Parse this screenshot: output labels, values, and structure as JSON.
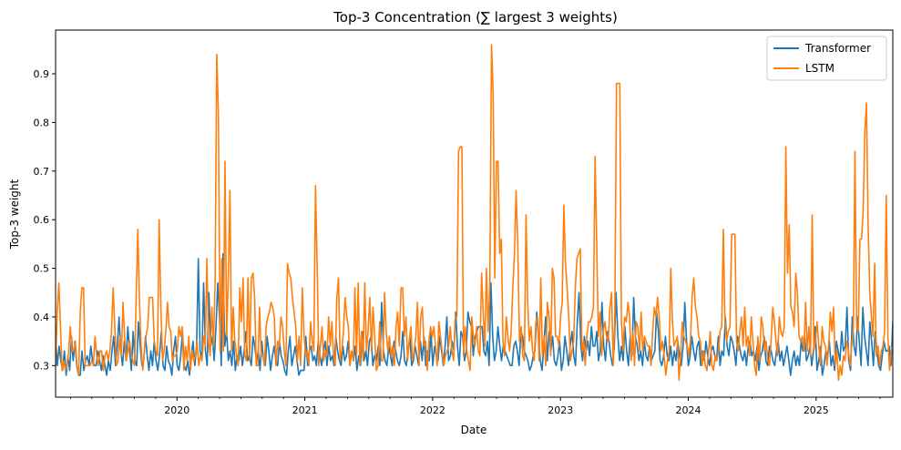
{
  "chart_data": {
    "type": "line",
    "title": "Top-3 Concentration (∑ largest 3 weights)",
    "xlabel": "Date",
    "ylabel": "Top-3 weight",
    "x_start": 2019.05,
    "x_end": 2025.6,
    "xlim": [
      2019.05,
      2025.6
    ],
    "ylim": [
      0.235,
      0.99
    ],
    "x_ticks": [
      2020,
      2021,
      2022,
      2023,
      2024,
      2025
    ],
    "x_tick_labels": [
      "2020",
      "2021",
      "2022",
      "2023",
      "2024",
      "2025"
    ],
    "y_ticks": [
      0.3,
      0.4,
      0.5,
      0.6,
      0.7,
      0.8,
      0.9
    ],
    "y_tick_labels": [
      "0.3",
      "0.4",
      "0.5",
      "0.6",
      "0.7",
      "0.8",
      "0.9"
    ],
    "legend_position": "top-right",
    "series": [
      {
        "name": "Transformer",
        "color": "#1f77b4",
        "values": [
          0.36,
          0.3,
          0.34,
          0.31,
          0.29,
          0.33,
          0.28,
          0.32,
          0.29,
          0.36,
          0.31,
          0.35,
          0.3,
          0.28,
          0.28,
          0.33,
          0.29,
          0.31,
          0.32,
          0.3,
          0.34,
          0.31,
          0.3,
          0.3,
          0.33,
          0.31,
          0.29,
          0.32,
          0.3,
          0.28,
          0.31,
          0.29,
          0.33,
          0.36,
          0.3,
          0.34,
          0.4,
          0.33,
          0.3,
          0.35,
          0.31,
          0.38,
          0.33,
          0.29,
          0.37,
          0.31,
          0.3,
          0.39,
          0.34,
          0.3,
          0.31,
          0.36,
          0.32,
          0.29,
          0.33,
          0.3,
          0.35,
          0.31,
          0.29,
          0.32,
          0.37,
          0.3,
          0.29,
          0.34,
          0.31,
          0.3,
          0.28,
          0.33,
          0.36,
          0.3,
          0.29,
          0.32,
          0.37,
          0.3,
          0.29,
          0.31,
          0.28,
          0.32,
          0.35,
          0.3,
          0.34,
          0.52,
          0.33,
          0.31,
          0.47,
          0.33,
          0.3,
          0.45,
          0.34,
          0.36,
          0.31,
          0.38,
          0.47,
          0.4,
          0.3,
          0.53,
          0.34,
          0.37,
          0.31,
          0.33,
          0.3,
          0.35,
          0.29,
          0.32,
          0.31,
          0.34,
          0.3,
          0.33,
          0.37,
          0.31,
          0.32,
          0.3,
          0.36,
          0.34,
          0.31,
          0.33,
          0.29,
          0.35,
          0.31,
          0.3,
          0.36,
          0.33,
          0.29,
          0.32,
          0.34,
          0.31,
          0.3,
          0.35,
          0.32,
          0.31,
          0.29,
          0.28,
          0.33,
          0.36,
          0.3,
          0.32,
          0.34,
          0.31,
          0.28,
          0.29,
          0.29,
          0.29,
          0.36,
          0.3,
          0.33,
          0.34,
          0.31,
          0.32,
          0.3,
          0.35,
          0.32,
          0.3,
          0.33,
          0.35,
          0.3,
          0.34,
          0.31,
          0.32,
          0.3,
          0.36,
          0.33,
          0.31,
          0.3,
          0.34,
          0.31,
          0.32,
          0.35,
          0.3,
          0.33,
          0.31,
          0.34,
          0.29,
          0.32,
          0.3,
          0.37,
          0.31,
          0.33,
          0.3,
          0.35,
          0.36,
          0.3,
          0.32,
          0.31,
          0.34,
          0.3,
          0.43,
          0.33,
          0.31,
          0.3,
          0.34,
          0.32,
          0.3,
          0.35,
          0.33,
          0.31,
          0.3,
          0.32,
          0.37,
          0.31,
          0.3,
          0.33,
          0.36,
          0.3,
          0.31,
          0.34,
          0.32,
          0.3,
          0.35,
          0.31,
          0.36,
          0.3,
          0.33,
          0.31,
          0.37,
          0.3,
          0.34,
          0.32,
          0.31,
          0.36,
          0.33,
          0.3,
          0.34,
          0.4,
          0.31,
          0.32,
          0.35,
          0.33,
          0.41,
          0.34,
          0.3,
          0.37,
          0.36,
          0.31,
          0.33,
          0.41,
          0.39,
          0.38,
          0.32,
          0.36,
          0.37,
          0.38,
          0.38,
          0.38,
          0.33,
          0.32,
          0.35,
          0.3,
          0.47,
          0.36,
          0.31,
          0.33,
          0.38,
          0.34,
          0.31,
          0.34,
          0.33,
          0.32,
          0.31,
          0.3,
          0.3,
          0.34,
          0.35,
          0.33,
          0.3,
          0.37,
          0.36,
          0.33,
          0.32,
          0.31,
          0.29,
          0.3,
          0.32,
          0.33,
          0.41,
          0.36,
          0.31,
          0.29,
          0.34,
          0.4,
          0.31,
          0.37,
          0.33,
          0.36,
          0.31,
          0.3,
          0.32,
          0.35,
          0.29,
          0.31,
          0.36,
          0.33,
          0.3,
          0.34,
          0.37,
          0.32,
          0.3,
          0.39,
          0.45,
          0.34,
          0.31,
          0.36,
          0.33,
          0.35,
          0.32,
          0.38,
          0.34,
          0.34,
          0.37,
          0.31,
          0.33,
          0.43,
          0.34,
          0.31,
          0.37,
          0.35,
          0.32,
          0.3,
          0.34,
          0.45,
          0.36,
          0.31,
          0.34,
          0.31,
          0.38,
          0.33,
          0.3,
          0.36,
          0.32,
          0.44,
          0.36,
          0.34,
          0.31,
          0.33,
          0.3,
          0.35,
          0.32,
          0.31,
          0.34,
          0.31,
          0.32,
          0.33,
          0.41,
          0.37,
          0.31,
          0.3,
          0.32,
          0.36,
          0.32,
          0.31,
          0.34,
          0.3,
          0.33,
          0.31,
          0.35,
          0.32,
          0.3,
          0.34,
          0.43,
          0.35,
          0.3,
          0.32,
          0.36,
          0.33,
          0.31,
          0.34,
          0.35,
          0.3,
          0.33,
          0.31,
          0.35,
          0.32,
          0.3,
          0.33,
          0.34,
          0.32,
          0.31,
          0.36,
          0.3,
          0.33,
          0.32,
          0.4,
          0.34,
          0.32,
          0.36,
          0.35,
          0.33,
          0.3,
          0.36,
          0.34,
          0.32,
          0.31,
          0.33,
          0.3,
          0.34,
          0.35,
          0.32,
          0.33,
          0.31,
          0.34,
          0.29,
          0.32,
          0.33,
          0.36,
          0.31,
          0.3,
          0.34,
          0.33,
          0.31,
          0.3,
          0.33,
          0.35,
          0.31,
          0.33,
          0.3,
          0.32,
          0.34,
          0.31,
          0.28,
          0.31,
          0.33,
          0.3,
          0.32,
          0.3,
          0.35,
          0.33,
          0.36,
          0.31,
          0.32,
          0.34,
          0.3,
          0.33,
          0.38,
          0.29,
          0.31,
          0.34,
          0.28,
          0.3,
          0.33,
          0.32,
          0.35,
          0.3,
          0.32,
          0.29,
          0.35,
          0.33,
          0.31,
          0.37,
          0.33,
          0.34,
          0.42,
          0.31,
          0.29,
          0.4,
          0.34,
          0.32,
          0.4,
          0.35,
          0.3,
          0.42,
          0.36,
          0.33,
          0.3,
          0.39,
          0.35,
          0.3,
          0.37,
          0.33,
          0.3,
          0.29,
          0.32,
          0.35,
          0.33,
          0.33,
          0.34,
          0.3,
          0.39
        ]
      },
      {
        "name": "LSTM",
        "color": "#ff7f0e",
        "values": [
          0.3,
          0.41,
          0.47,
          0.38,
          0.29,
          0.31,
          0.29,
          0.3,
          0.33,
          0.38,
          0.33,
          0.33,
          0.35,
          0.3,
          0.28,
          0.41,
          0.46,
          0.46,
          0.3,
          0.3,
          0.3,
          0.3,
          0.31,
          0.3,
          0.36,
          0.32,
          0.3,
          0.33,
          0.33,
          0.29,
          0.32,
          0.33,
          0.31,
          0.33,
          0.37,
          0.46,
          0.38,
          0.3,
          0.31,
          0.36,
          0.32,
          0.43,
          0.36,
          0.31,
          0.33,
          0.35,
          0.32,
          0.31,
          0.3,
          0.44,
          0.58,
          0.43,
          0.34,
          0.29,
          0.33,
          0.36,
          0.38,
          0.44,
          0.44,
          0.44,
          0.35,
          0.33,
          0.32,
          0.6,
          0.42,
          0.31,
          0.33,
          0.37,
          0.43,
          0.38,
          0.37,
          0.31,
          0.32,
          0.32,
          0.33,
          0.38,
          0.36,
          0.38,
          0.29,
          0.34,
          0.31,
          0.36,
          0.29,
          0.33,
          0.31,
          0.32,
          0.35,
          0.3,
          0.32,
          0.31,
          0.36,
          0.34,
          0.52,
          0.35,
          0.32,
          0.42,
          0.34,
          0.47,
          0.94,
          0.82,
          0.33,
          0.52,
          0.33,
          0.72,
          0.36,
          0.48,
          0.66,
          0.33,
          0.42,
          0.35,
          0.32,
          0.3,
          0.46,
          0.39,
          0.48,
          0.32,
          0.31,
          0.48,
          0.31,
          0.48,
          0.49,
          0.44,
          0.3,
          0.3,
          0.42,
          0.32,
          0.32,
          0.3,
          0.38,
          0.4,
          0.41,
          0.43,
          0.42,
          0.4,
          0.3,
          0.35,
          0.34,
          0.4,
          0.38,
          0.33,
          0.3,
          0.51,
          0.49,
          0.48,
          0.44,
          0.41,
          0.38,
          0.31,
          0.36,
          0.3,
          0.46,
          0.37,
          0.32,
          0.33,
          0.3,
          0.39,
          0.35,
          0.33,
          0.67,
          0.51,
          0.3,
          0.34,
          0.38,
          0.31,
          0.33,
          0.32,
          0.4,
          0.34,
          0.39,
          0.32,
          0.3,
          0.44,
          0.48,
          0.31,
          0.33,
          0.37,
          0.44,
          0.4,
          0.38,
          0.3,
          0.33,
          0.31,
          0.46,
          0.32,
          0.47,
          0.3,
          0.37,
          0.31,
          0.47,
          0.33,
          0.37,
          0.44,
          0.33,
          0.42,
          0.36,
          0.29,
          0.3,
          0.39,
          0.31,
          0.31,
          0.45,
          0.37,
          0.33,
          0.36,
          0.32,
          0.34,
          0.3,
          0.38,
          0.41,
          0.34,
          0.46,
          0.46,
          0.36,
          0.4,
          0.31,
          0.35,
          0.38,
          0.31,
          0.33,
          0.36,
          0.43,
          0.3,
          0.4,
          0.42,
          0.34,
          0.35,
          0.29,
          0.35,
          0.38,
          0.36,
          0.38,
          0.34,
          0.3,
          0.39,
          0.36,
          0.33,
          0.3,
          0.32,
          0.33,
          0.34,
          0.38,
          0.33,
          0.31,
          0.4,
          0.4,
          0.74,
          0.75,
          0.75,
          0.32,
          0.38,
          0.33,
          0.31,
          0.29,
          0.4,
          0.36,
          0.34,
          0.38,
          0.33,
          0.32,
          0.49,
          0.41,
          0.34,
          0.5,
          0.37,
          0.47,
          0.96,
          0.86,
          0.48,
          0.72,
          0.72,
          0.53,
          0.56,
          0.35,
          0.32,
          0.4,
          0.36,
          0.33,
          0.37,
          0.46,
          0.53,
          0.66,
          0.55,
          0.35,
          0.38,
          0.32,
          0.31,
          0.61,
          0.43,
          0.35,
          0.38,
          0.33,
          0.31,
          0.39,
          0.4,
          0.31,
          0.48,
          0.32,
          0.36,
          0.3,
          0.43,
          0.4,
          0.32,
          0.5,
          0.48,
          0.36,
          0.36,
          0.34,
          0.4,
          0.43,
          0.63,
          0.51,
          0.46,
          0.4,
          0.31,
          0.33,
          0.35,
          0.46,
          0.52,
          0.53,
          0.54,
          0.33,
          0.35,
          0.3,
          0.36,
          0.39,
          0.39,
          0.4,
          0.42,
          0.73,
          0.55,
          0.36,
          0.41,
          0.32,
          0.37,
          0.39,
          0.36,
          0.35,
          0.42,
          0.45,
          0.3,
          0.41,
          0.88,
          0.88,
          0.88,
          0.39,
          0.33,
          0.4,
          0.39,
          0.43,
          0.4,
          0.31,
          0.37,
          0.3,
          0.39,
          0.38,
          0.33,
          0.41,
          0.33,
          0.36,
          0.35,
          0.34,
          0.34,
          0.3,
          0.37,
          0.42,
          0.4,
          0.44,
          0.4,
          0.33,
          0.35,
          0.32,
          0.28,
          0.31,
          0.33,
          0.5,
          0.39,
          0.34,
          0.35,
          0.36,
          0.27,
          0.32,
          0.39,
          0.36,
          0.35,
          0.34,
          0.32,
          0.35,
          0.44,
          0.48,
          0.42,
          0.4,
          0.36,
          0.35,
          0.3,
          0.33,
          0.3,
          0.29,
          0.33,
          0.37,
          0.3,
          0.29,
          0.32,
          0.31,
          0.33,
          0.37,
          0.38,
          0.58,
          0.39,
          0.35,
          0.37,
          0.38,
          0.57,
          0.57,
          0.57,
          0.35,
          0.33,
          0.37,
          0.4,
          0.34,
          0.42,
          0.34,
          0.36,
          0.32,
          0.4,
          0.35,
          0.3,
          0.28,
          0.36,
          0.31,
          0.4,
          0.38,
          0.33,
          0.35,
          0.31,
          0.3,
          0.35,
          0.42,
          0.39,
          0.35,
          0.32,
          0.4,
          0.37,
          0.36,
          0.38,
          0.75,
          0.49,
          0.59,
          0.42,
          0.41,
          0.38,
          0.49,
          0.45,
          0.36,
          0.35,
          0.36,
          0.33,
          0.43,
          0.33,
          0.38,
          0.32,
          0.61,
          0.33,
          0.35,
          0.39,
          0.34,
          0.3,
          0.38,
          0.35,
          0.34,
          0.3,
          0.34,
          0.41,
          0.37,
          0.42,
          0.3,
          0.33,
          0.27,
          0.3,
          0.28,
          0.32,
          0.31,
          0.35,
          0.33,
          0.3,
          0.34,
          0.38,
          0.74,
          0.38,
          0.37,
          0.56,
          0.56,
          0.62,
          0.78,
          0.84,
          0.59,
          0.45,
          0.4,
          0.36,
          0.51,
          0.32,
          0.34,
          0.3,
          0.33,
          0.34,
          0.37,
          0.65,
          0.36,
          0.29,
          0.33,
          0.34
        ]
      }
    ]
  }
}
